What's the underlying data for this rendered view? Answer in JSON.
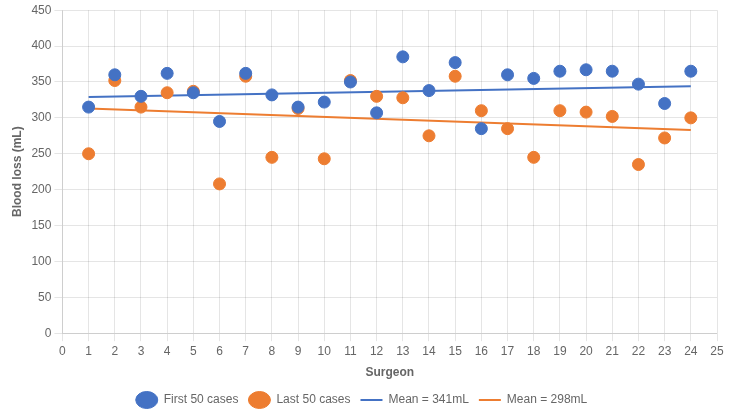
{
  "chart_data": {
    "type": "scatter",
    "xlabel": "Surgeon",
    "ylabel": "Blood loss (mL)",
    "x": [
      1,
      2,
      3,
      4,
      5,
      6,
      7,
      8,
      9,
      10,
      11,
      12,
      13,
      14,
      15,
      16,
      17,
      18,
      19,
      20,
      21,
      22,
      23,
      24
    ],
    "series": [
      {
        "name": "First 50 cases",
        "type": "scatter",
        "color": "#4472C4",
        "values": [
          315,
          360,
          330,
          362,
          335,
          295,
          362,
          332,
          315,
          322,
          350,
          307,
          385,
          338,
          377,
          285,
          360,
          355,
          365,
          367,
          365,
          347,
          320,
          365
        ]
      },
      {
        "name": "Last 50 cases",
        "type": "scatter",
        "color": "#ED7D31",
        "values": [
          250,
          352,
          315,
          335,
          337,
          208,
          358,
          245,
          313,
          243,
          352,
          330,
          328,
          275,
          358,
          310,
          285,
          245,
          310,
          308,
          302,
          235,
          272,
          300
        ]
      },
      {
        "name": "Mean = 341mL",
        "type": "line",
        "color": "#4472C4",
        "x": [
          1,
          24
        ],
        "values": [
          329,
          344
        ]
      },
      {
        "name": "Mean = 298mL",
        "type": "line",
        "color": "#ED7D31",
        "x": [
          1,
          24
        ],
        "values": [
          313,
          283
        ]
      }
    ],
    "xlim": [
      0,
      25
    ],
    "xticks": [
      0,
      1,
      2,
      3,
      4,
      5,
      6,
      7,
      8,
      9,
      10,
      11,
      12,
      13,
      14,
      15,
      16,
      17,
      18,
      19,
      20,
      21,
      22,
      23,
      24,
      25
    ],
    "ylim": [
      0,
      450
    ],
    "yticks": [
      0,
      50,
      100,
      150,
      200,
      250,
      300,
      350,
      400,
      450
    ],
    "grid": true,
    "legend": "bottom"
  }
}
